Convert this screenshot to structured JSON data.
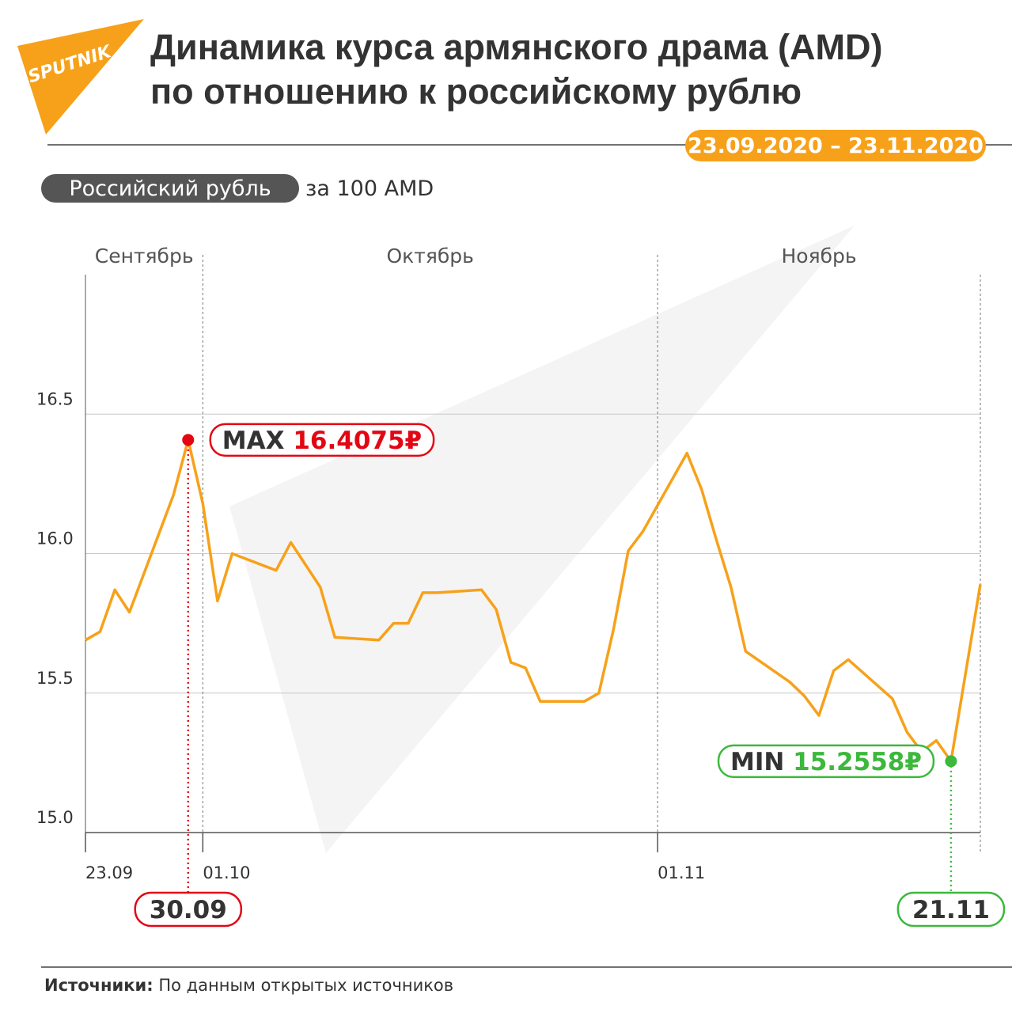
{
  "logo": "SPUTNIK",
  "chart_data": {
    "type": "line",
    "title": "Динамика курса армянского драма (AMD)\nпо отношению к российскому рублю",
    "date_range": "23.09.2020 – 23.11.2020",
    "unit_badge": "Российский рубль",
    "unit_suffix": "за 100 AMD",
    "months": [
      "Сентябрь",
      "Октябрь",
      "Ноябрь"
    ],
    "x": [
      "23.09",
      "24.09",
      "25.09",
      "26.09",
      "29.09",
      "30.09",
      "01.10",
      "02.10",
      "03.10",
      "06.10",
      "07.10",
      "08.10",
      "09.10",
      "10.10",
      "13.10",
      "14.10",
      "15.10",
      "16.10",
      "17.10",
      "20.10",
      "21.10",
      "22.10",
      "23.10",
      "24.10",
      "27.10",
      "28.10",
      "29.10",
      "30.10",
      "31.10",
      "03.11",
      "04.11",
      "05.11",
      "06.11",
      "07.11",
      "10.11",
      "11.11",
      "12.11",
      "13.11",
      "14.11",
      "17.11",
      "18.11",
      "19.11",
      "20.11",
      "21.11",
      "23.11"
    ],
    "values": [
      15.69,
      15.72,
      15.87,
      15.79,
      16.21,
      16.4075,
      16.18,
      15.83,
      16.0,
      15.94,
      16.04,
      15.96,
      15.88,
      15.7,
      15.69,
      15.75,
      15.75,
      15.86,
      15.86,
      15.87,
      15.8,
      15.61,
      15.59,
      15.47,
      15.47,
      15.5,
      15.73,
      16.01,
      16.08,
      16.36,
      16.23,
      16.05,
      15.88,
      15.65,
      15.54,
      15.49,
      15.42,
      15.58,
      15.62,
      15.48,
      15.36,
      15.29,
      15.33,
      15.2558,
      15.89
    ],
    "color": "#f7a11a",
    "xlim": [
      "23.09",
      "23.11"
    ],
    "xticks": [
      "23.09",
      "01.10",
      "01.11"
    ],
    "ylim": [
      15,
      17
    ],
    "yticks": [
      {
        "value": 15,
        "label": "15.0"
      },
      15.5,
      {
        "value": 16,
        "label": "16.0"
      },
      16.5
    ],
    "grid": true,
    "annotations": [
      {
        "label": "MAX",
        "value": 16.4075,
        "value_label": "16.4075₽",
        "x": "30.09",
        "color": "#e30613"
      },
      {
        "label": "MIN",
        "value": 15.2558,
        "value_label": "15.2558₽",
        "x": "21.11",
        "color": "#3cb83c"
      }
    ],
    "source_label": "Источники:",
    "source": "По данным открытых источников"
  }
}
